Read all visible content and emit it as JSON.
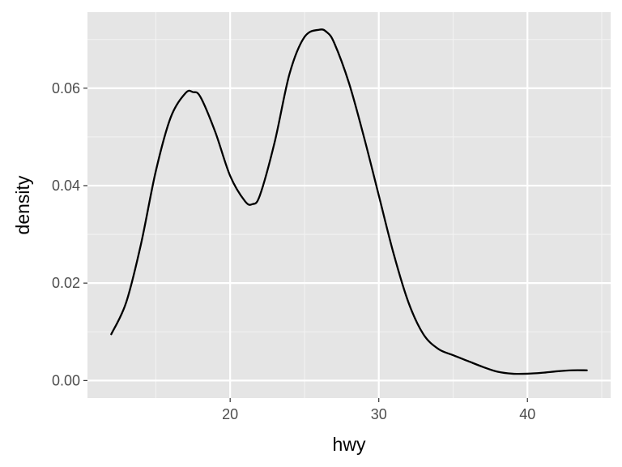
{
  "chart_data": {
    "type": "line",
    "xlabel": "hwy",
    "ylabel": "density",
    "xlim": [
      10.4,
      45.6
    ],
    "ylim": [
      -0.0036,
      0.0756
    ],
    "x_ticks": [
      20,
      30,
      40
    ],
    "x_tick_labels": [
      "20",
      "30",
      "40"
    ],
    "x_minor_ticks": [
      15,
      25,
      35,
      45
    ],
    "y_ticks": [
      0.0,
      0.02,
      0.04,
      0.06
    ],
    "y_tick_labels": [
      "0.00",
      "0.02",
      "0.04",
      "0.06"
    ],
    "y_minor_ticks": [
      0.01,
      0.03,
      0.05,
      0.07
    ],
    "grid": true,
    "legend": "none",
    "series": [
      {
        "x": [
          12,
          13,
          14,
          15,
          16,
          17,
          17.5,
          18,
          19,
          20,
          21,
          21.5,
          22,
          23,
          24,
          25,
          26,
          26.5,
          27,
          28,
          29,
          30,
          31,
          32,
          33,
          34,
          35,
          36,
          37,
          38,
          39,
          40,
          41,
          42,
          43,
          44
        ],
        "values": [
          0.0095,
          0.016,
          0.028,
          0.043,
          0.054,
          0.059,
          0.0592,
          0.0582,
          0.051,
          0.042,
          0.0368,
          0.0362,
          0.038,
          0.049,
          0.063,
          0.0705,
          0.072,
          0.0715,
          0.0693,
          0.061,
          0.05,
          0.038,
          0.026,
          0.016,
          0.0095,
          0.0065,
          0.0052,
          0.004,
          0.0028,
          0.0018,
          0.0014,
          0.0014,
          0.0016,
          0.0019,
          0.0021,
          0.0021
        ],
        "color": "#000000"
      }
    ]
  },
  "colors": {
    "panel_background": "#E5E5E5",
    "grid_major": "#FFFFFF",
    "grid_minor": "#F2F2F2",
    "tick_text": "#4D4D4D",
    "line": "#000000"
  }
}
